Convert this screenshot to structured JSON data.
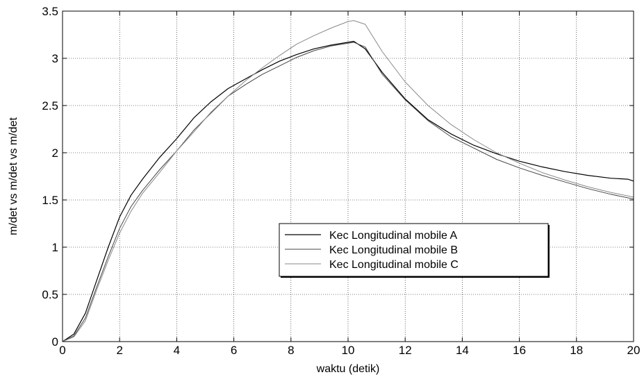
{
  "chart_data": {
    "type": "line",
    "title": "",
    "xlabel": "waktu (detik)",
    "ylabel": "m/det vs m/det vs m/det",
    "xlim": [
      0,
      20
    ],
    "ylim": [
      0,
      3.5
    ],
    "xticks": [
      0,
      2,
      4,
      6,
      8,
      10,
      12,
      14,
      16,
      18,
      20
    ],
    "yticks": [
      0,
      0.5,
      1,
      1.5,
      2,
      2.5,
      3,
      3.5
    ],
    "xtick_labels": [
      "0",
      "2",
      "4",
      "6",
      "8",
      "10",
      "12",
      "14",
      "16",
      "18",
      "20"
    ],
    "ytick_labels": [
      "0",
      "0.5",
      "1",
      "1.5",
      "2",
      "2.5",
      "3",
      "3.5"
    ],
    "grid": true,
    "legend_position": "center-right",
    "series": [
      {
        "name": "Kec Longitudinal mobile A",
        "color": "#000000",
        "x": [
          0,
          0.4,
          0.8,
          1.2,
          1.6,
          2.0,
          2.4,
          2.8,
          3.4,
          4.0,
          4.6,
          5.2,
          5.8,
          6.4,
          7.0,
          7.6,
          8.2,
          8.8,
          9.4,
          10.0,
          10.2,
          10.6,
          11.2,
          12.0,
          12.8,
          13.6,
          14.4,
          15.2,
          16.0,
          16.8,
          17.6,
          18.4,
          19.2,
          19.8,
          20.0
        ],
        "y": [
          0.0,
          0.08,
          0.3,
          0.65,
          1.0,
          1.32,
          1.55,
          1.72,
          1.95,
          2.15,
          2.37,
          2.54,
          2.68,
          2.78,
          2.88,
          2.97,
          3.04,
          3.1,
          3.14,
          3.17,
          3.18,
          3.1,
          2.85,
          2.57,
          2.35,
          2.2,
          2.08,
          1.99,
          1.91,
          1.85,
          1.8,
          1.76,
          1.73,
          1.72,
          1.7
        ]
      },
      {
        "name": "Kec Longitudinal mobile B",
        "color": "#444444",
        "x": [
          0,
          0.4,
          0.8,
          1.2,
          1.6,
          2.0,
          2.4,
          2.8,
          3.4,
          4.0,
          4.6,
          5.2,
          5.8,
          6.4,
          7.0,
          7.6,
          8.2,
          8.8,
          9.4,
          10.0,
          10.2,
          10.6,
          11.2,
          12.0,
          12.8,
          13.6,
          14.4,
          15.2,
          16.0,
          16.8,
          17.6,
          18.4,
          19.2,
          20.0
        ],
        "y": [
          0.0,
          0.06,
          0.25,
          0.58,
          0.9,
          1.2,
          1.43,
          1.6,
          1.82,
          2.02,
          2.24,
          2.42,
          2.6,
          2.72,
          2.83,
          2.92,
          3.01,
          3.08,
          3.13,
          3.16,
          3.17,
          3.12,
          2.83,
          2.56,
          2.34,
          2.17,
          2.05,
          1.93,
          1.84,
          1.76,
          1.69,
          1.62,
          1.56,
          1.51
        ]
      },
      {
        "name": "Kec Longitudinal mobile C",
        "color": "#888888",
        "x": [
          0,
          0.4,
          0.8,
          1.2,
          1.6,
          2.0,
          2.4,
          2.8,
          3.4,
          4.0,
          4.6,
          5.2,
          5.8,
          6.4,
          7.0,
          7.6,
          8.2,
          8.8,
          9.4,
          10.0,
          10.2,
          10.6,
          11.2,
          12.0,
          12.8,
          13.6,
          14.4,
          15.2,
          16.0,
          16.8,
          17.6,
          18.4,
          19.2,
          20.0
        ],
        "y": [
          0.0,
          0.05,
          0.22,
          0.55,
          0.86,
          1.15,
          1.38,
          1.57,
          1.79,
          2.02,
          2.22,
          2.43,
          2.6,
          2.76,
          2.9,
          3.03,
          3.15,
          3.24,
          3.32,
          3.39,
          3.4,
          3.36,
          3.07,
          2.75,
          2.5,
          2.3,
          2.14,
          2.0,
          1.89,
          1.79,
          1.71,
          1.64,
          1.58,
          1.53
        ]
      }
    ]
  }
}
